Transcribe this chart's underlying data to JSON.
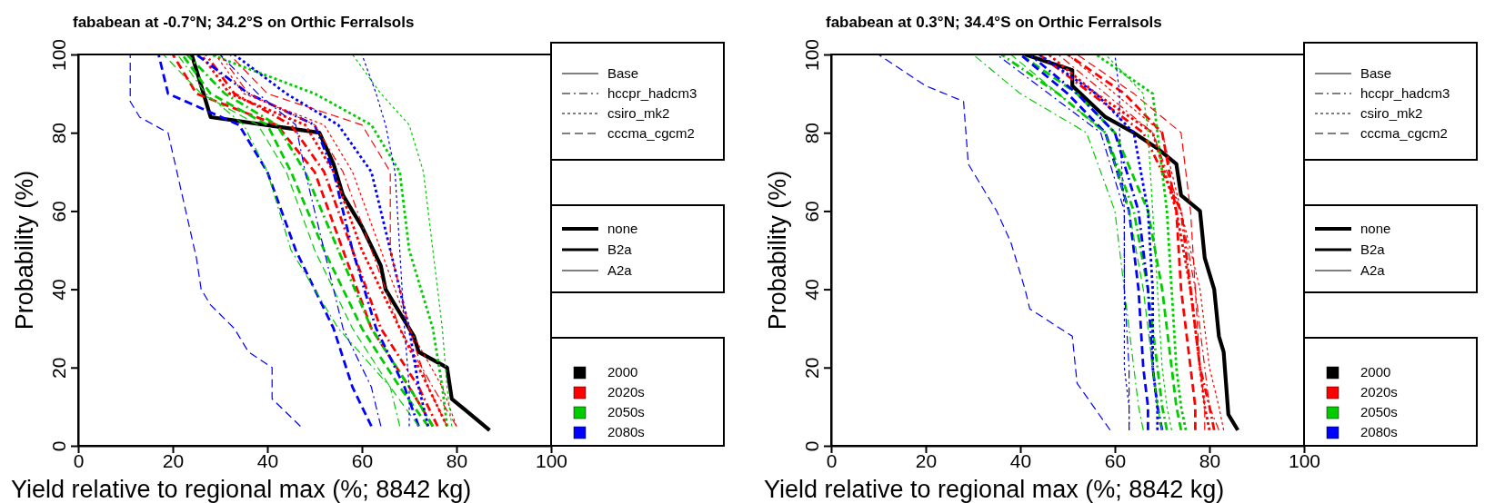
{
  "chart_data": [
    {
      "type": "line",
      "title": "fababean at -0.7°N; 34.2°S on Orthic Ferralsols",
      "xlabel": "Yield relative to regional max (%; 8842 kg)",
      "ylabel": "Probability (%)",
      "xlim": [
        0,
        100
      ],
      "xticks": [
        0,
        20,
        40,
        60,
        80,
        100
      ],
      "ylim": [
        0,
        100
      ],
      "yticks": [
        0,
        20,
        40,
        60,
        80,
        100
      ],
      "annotations": [
        "Base",
        "hccpr_hadcm3",
        "csiro_mk2",
        "cccma_cgcm2",
        "none",
        "B2a",
        "A2a",
        "2000",
        "2020s",
        "2050s",
        "2080s"
      ],
      "series": [
        {
          "color": "#000000",
          "line_style": "solid",
          "x": [
            24,
            26,
            28,
            51,
            54,
            56,
            60,
            64,
            65,
            68,
            71,
            72,
            78,
            79,
            87
          ],
          "values": [
            100,
            92,
            84,
            80,
            72,
            64,
            56,
            46,
            40,
            34,
            28,
            24,
            20,
            12,
            4
          ]
        },
        {
          "color": "#ff0000",
          "line_style": "dashdot",
          "x": [
            27,
            33,
            45,
            52,
            58,
            64,
            72,
            76
          ],
          "values": [
            100,
            90,
            82,
            70,
            50,
            30,
            15,
            5
          ]
        },
        {
          "color": "#ff0000",
          "line_style": "dashdot",
          "x": [
            30,
            36,
            50,
            56,
            62,
            68,
            75,
            80
          ],
          "values": [
            100,
            90,
            82,
            70,
            50,
            30,
            15,
            5
          ]
        },
        {
          "color": "#ff0000",
          "line_style": "dotted",
          "x": [
            26,
            32,
            48,
            54,
            60,
            68,
            74,
            78
          ],
          "values": [
            100,
            90,
            82,
            70,
            50,
            30,
            15,
            5
          ]
        },
        {
          "color": "#ff0000",
          "line_style": "dotted",
          "x": [
            29,
            35,
            52,
            58,
            64,
            70,
            77,
            80
          ],
          "values": [
            100,
            90,
            82,
            70,
            50,
            30,
            15,
            5
          ]
        },
        {
          "color": "#ff0000",
          "line_style": "dashed",
          "x": [
            20,
            25,
            42,
            50,
            56,
            62,
            70,
            75
          ],
          "values": [
            100,
            90,
            82,
            70,
            50,
            30,
            15,
            5
          ]
        },
        {
          "color": "#ff0000",
          "line_style": "dashed",
          "x": [
            32,
            40,
            60,
            66,
            66,
            70,
            74,
            78
          ],
          "values": [
            100,
            90,
            82,
            70,
            50,
            30,
            15,
            5
          ]
        },
        {
          "color": "#00cc00",
          "line_style": "dashdot",
          "x": [
            23,
            31,
            42,
            48,
            55,
            62,
            70,
            75
          ],
          "values": [
            100,
            90,
            82,
            70,
            50,
            30,
            15,
            5
          ]
        },
        {
          "color": "#00cc00",
          "line_style": "dashdot",
          "x": [
            21,
            27,
            35,
            40,
            45,
            55,
            66,
            68
          ],
          "values": [
            100,
            90,
            82,
            70,
            50,
            30,
            15,
            5
          ]
        },
        {
          "color": "#00cc00",
          "line_style": "dotted",
          "x": [
            28,
            50,
            62,
            68,
            70,
            75,
            77,
            78
          ],
          "values": [
            100,
            90,
            82,
            70,
            50,
            30,
            15,
            5
          ]
        },
        {
          "color": "#00cc00",
          "line_style": "dotted",
          "x": [
            58,
            64,
            70,
            73,
            75,
            77,
            78,
            79
          ],
          "values": [
            100,
            90,
            82,
            70,
            50,
            30,
            15,
            5
          ]
        },
        {
          "color": "#00cc00",
          "line_style": "dashed",
          "x": [
            22,
            28,
            40,
            45,
            52,
            60,
            68,
            74
          ],
          "values": [
            100,
            90,
            82,
            70,
            50,
            30,
            15,
            5
          ]
        },
        {
          "color": "#00cc00",
          "line_style": "dashed",
          "x": [
            18,
            26,
            38,
            44,
            50,
            58,
            66,
            72
          ],
          "values": [
            100,
            90,
            82,
            70,
            50,
            30,
            15,
            5
          ]
        },
        {
          "color": "#0000ff",
          "line_style": "dashdot",
          "x": [
            25,
            36,
            50,
            54,
            58,
            63,
            69,
            72
          ],
          "values": [
            100,
            90,
            82,
            70,
            50,
            30,
            15,
            5
          ]
        },
        {
          "color": "#0000ff",
          "line_style": "dashdot",
          "x": [
            30,
            38,
            46,
            48,
            52,
            56,
            62,
            64
          ],
          "values": [
            100,
            90,
            82,
            70,
            50,
            30,
            15,
            5
          ]
        },
        {
          "color": "#0000ff",
          "line_style": "dotted",
          "x": [
            33,
            44,
            55,
            62,
            66,
            70,
            72,
            74
          ],
          "values": [
            100,
            90,
            82,
            70,
            50,
            30,
            15,
            5
          ]
        },
        {
          "color": "#0000ff",
          "line_style": "dotted",
          "x": [
            60,
            63,
            65,
            67,
            68,
            69,
            70,
            70
          ],
          "values": [
            100,
            90,
            82,
            70,
            50,
            30,
            15,
            5
          ]
        },
        {
          "color": "#0000ff",
          "line_style": "dashed",
          "x": [
            17,
            19,
            34,
            40,
            46,
            54,
            58,
            62
          ],
          "values": [
            100,
            90,
            82,
            70,
            50,
            30,
            15,
            5
          ]
        },
        {
          "color": "#0000ff",
          "line_style": "dashed",
          "x": [
            11,
            11,
            13,
            19,
            22,
            25,
            26,
            28,
            33,
            36,
            41,
            41,
            47
          ],
          "values": [
            100,
            88,
            84,
            80,
            64,
            48,
            40,
            36,
            30,
            24,
            20,
            12,
            5
          ]
        }
      ]
    },
    {
      "type": "line",
      "title": "fababean at 0.3°N; 34.4°S on Orthic Ferralsols",
      "xlabel": "Yield relative to regional max (%; 8842 kg)",
      "ylabel": "Probability (%)",
      "xlim": [
        0,
        100
      ],
      "xticks": [
        0,
        20,
        40,
        60,
        80,
        100
      ],
      "ylim": [
        0,
        100
      ],
      "yticks": [
        0,
        20,
        40,
        60,
        80,
        100
      ],
      "annotations": [
        "Base",
        "hccpr_hadcm3",
        "csiro_mk2",
        "cccma_cgcm2",
        "none",
        "B2a",
        "A2a",
        "2000",
        "2020s",
        "2050s",
        "2080s"
      ],
      "series": [
        {
          "color": "#000000",
          "line_style": "solid",
          "x": [
            41,
            51,
            51,
            58,
            64,
            69,
            73,
            74,
            78,
            79,
            81,
            82,
            83,
            84,
            86
          ],
          "values": [
            100,
            96,
            92,
            84,
            80,
            76,
            72,
            64,
            60,
            48,
            40,
            28,
            24,
            8,
            4
          ]
        },
        {
          "color": "#ff0000",
          "line_style": "dashdot",
          "x": [
            44,
            55,
            66,
            74,
            76,
            78,
            80,
            81
          ],
          "values": [
            100,
            90,
            80,
            60,
            40,
            20,
            10,
            4
          ]
        },
        {
          "color": "#ff0000",
          "line_style": "dashdot",
          "x": [
            48,
            58,
            68,
            74,
            77,
            79,
            80,
            82
          ],
          "values": [
            100,
            90,
            80,
            60,
            40,
            20,
            10,
            4
          ]
        },
        {
          "color": "#ff0000",
          "line_style": "dotted",
          "x": [
            46,
            56,
            68,
            73,
            76,
            78,
            79,
            80
          ],
          "values": [
            100,
            90,
            80,
            60,
            40,
            20,
            10,
            4
          ]
        },
        {
          "color": "#ff0000",
          "line_style": "dotted",
          "x": [
            50,
            60,
            70,
            74,
            78,
            80,
            82,
            83
          ],
          "values": [
            100,
            90,
            80,
            60,
            40,
            20,
            10,
            4
          ]
        },
        {
          "color": "#ff0000",
          "line_style": "dashed",
          "x": [
            50,
            62,
            70,
            73,
            74,
            76,
            77,
            77
          ],
          "values": [
            100,
            90,
            80,
            60,
            40,
            20,
            10,
            4
          ]
        },
        {
          "color": "#ff0000",
          "line_style": "dashed",
          "x": [
            52,
            64,
            74,
            76,
            77,
            78,
            79,
            79
          ],
          "values": [
            100,
            90,
            80,
            60,
            40,
            20,
            10,
            4
          ]
        },
        {
          "color": "#00cc00",
          "line_style": "dashdot",
          "x": [
            36,
            48,
            58,
            64,
            67,
            69,
            70,
            71
          ],
          "values": [
            100,
            90,
            80,
            60,
            40,
            20,
            10,
            4
          ]
        },
        {
          "color": "#00cc00",
          "line_style": "dashdot",
          "x": [
            30,
            40,
            54,
            60,
            62,
            64,
            65,
            66
          ],
          "values": [
            100,
            90,
            80,
            60,
            40,
            20,
            10,
            4
          ]
        },
        {
          "color": "#00cc00",
          "line_style": "dotted",
          "x": [
            56,
            68,
            69,
            71,
            72,
            73,
            74,
            75
          ],
          "values": [
            100,
            90,
            80,
            60,
            40,
            20,
            10,
            4
          ]
        },
        {
          "color": "#00cc00",
          "line_style": "dotted",
          "x": [
            58,
            66,
            67,
            68,
            69,
            70,
            71,
            72
          ],
          "values": [
            100,
            90,
            80,
            60,
            40,
            20,
            10,
            4
          ]
        },
        {
          "color": "#00cc00",
          "line_style": "dashed",
          "x": [
            40,
            52,
            60,
            67,
            70,
            72,
            73,
            74
          ],
          "values": [
            100,
            90,
            80,
            60,
            40,
            20,
            10,
            4
          ]
        },
        {
          "color": "#00cc00",
          "line_style": "dashed",
          "x": [
            38,
            48,
            58,
            63,
            66,
            68,
            69,
            70
          ],
          "values": [
            100,
            90,
            80,
            60,
            40,
            20,
            10,
            4
          ]
        },
        {
          "color": "#0000ff",
          "line_style": "dashdot",
          "x": [
            42,
            52,
            60,
            65,
            67,
            68,
            69,
            70
          ],
          "values": [
            100,
            90,
            80,
            60,
            40,
            20,
            10,
            4
          ]
        },
        {
          "color": "#0000ff",
          "line_style": "dashdot",
          "x": [
            35,
            46,
            57,
            62,
            62,
            63,
            63,
            63
          ],
          "values": [
            100,
            90,
            80,
            60,
            40,
            20,
            10,
            4
          ]
        },
        {
          "color": "#0000ff",
          "line_style": "dotted",
          "x": [
            44,
            56,
            64,
            67,
            68,
            68,
            69,
            69
          ],
          "values": [
            100,
            90,
            80,
            60,
            40,
            20,
            10,
            4
          ]
        },
        {
          "color": "#0000ff",
          "line_style": "dotted",
          "x": [
            60,
            61,
            61,
            62,
            62,
            62,
            63,
            63
          ],
          "values": [
            100,
            90,
            80,
            60,
            40,
            20,
            10,
            4
          ]
        },
        {
          "color": "#0000ff",
          "line_style": "dashed",
          "x": [
            40,
            50,
            58,
            63,
            65,
            66,
            67,
            67
          ],
          "values": [
            100,
            90,
            80,
            60,
            40,
            20,
            10,
            4
          ]
        },
        {
          "color": "#0000ff",
          "line_style": "dashed",
          "x": [
            10,
            20,
            28,
            29,
            35,
            38,
            41,
            42,
            51,
            52,
            59
          ],
          "values": [
            100,
            92,
            88,
            72,
            60,
            52,
            40,
            35,
            28,
            16,
            4
          ]
        }
      ]
    }
  ]
}
